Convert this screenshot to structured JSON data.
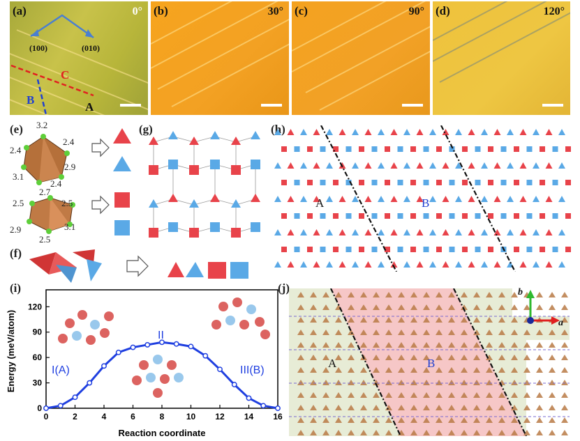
{
  "panels": {
    "a": {
      "label": "(a)",
      "angle": "0°",
      "dir1": "(100)",
      "dir2": "(010)",
      "regionA": "A",
      "regionB": "B",
      "regionC": "C"
    },
    "b": {
      "label": "(b)",
      "angle": "30°"
    },
    "c": {
      "label": "(c)",
      "angle": "90°"
    },
    "d": {
      "label": "(d)",
      "angle": "120°"
    },
    "e": {
      "label": "(e)",
      "top_values": [
        "3.2",
        "2.4",
        "2.4",
        "2.9",
        "3.1",
        "2.4"
      ],
      "bottom_values": [
        "2.7",
        "2.5",
        "2.5",
        "2.9",
        "3.1",
        "2.5"
      ]
    },
    "f": {
      "label": "(f)"
    },
    "g": {
      "label": "(g)"
    },
    "h": {
      "label": "(h)",
      "regionA": "A",
      "regionB": "B"
    },
    "i": {
      "label": "(i)",
      "state1": "I(A)",
      "state2": "II",
      "state3": "III(B)"
    },
    "j": {
      "label": "(j)",
      "regionA": "A",
      "regionB": "B",
      "axis_b": "b",
      "axis_a": "a"
    }
  },
  "colors": {
    "red": "#e8434a",
    "blue": "#5aa9e6",
    "film_a": "#b9b52c",
    "film_orange": "#f0a21c",
    "film_d": "#e9c23a"
  },
  "chart_data": {
    "type": "line",
    "x": [
      0,
      1,
      2,
      3,
      4,
      5,
      6,
      7,
      8,
      9,
      10,
      11,
      12,
      13,
      14,
      15,
      16
    ],
    "y": [
      0,
      3,
      13,
      30,
      50,
      66,
      72,
      75,
      78,
      76,
      73,
      62,
      46,
      28,
      12,
      3,
      0
    ],
    "xlabel": "Reaction coordinate",
    "ylabel": "Energy (meV/atom)",
    "xlim": [
      0,
      16
    ],
    "ylim": [
      0,
      140
    ],
    "xticks": [
      "0",
      "2",
      "4",
      "6",
      "8",
      "10",
      "12",
      "14",
      "16"
    ],
    "yticks": [
      "0",
      "30",
      "60",
      "90",
      "120"
    ],
    "series_color": "#1f3fe0"
  }
}
